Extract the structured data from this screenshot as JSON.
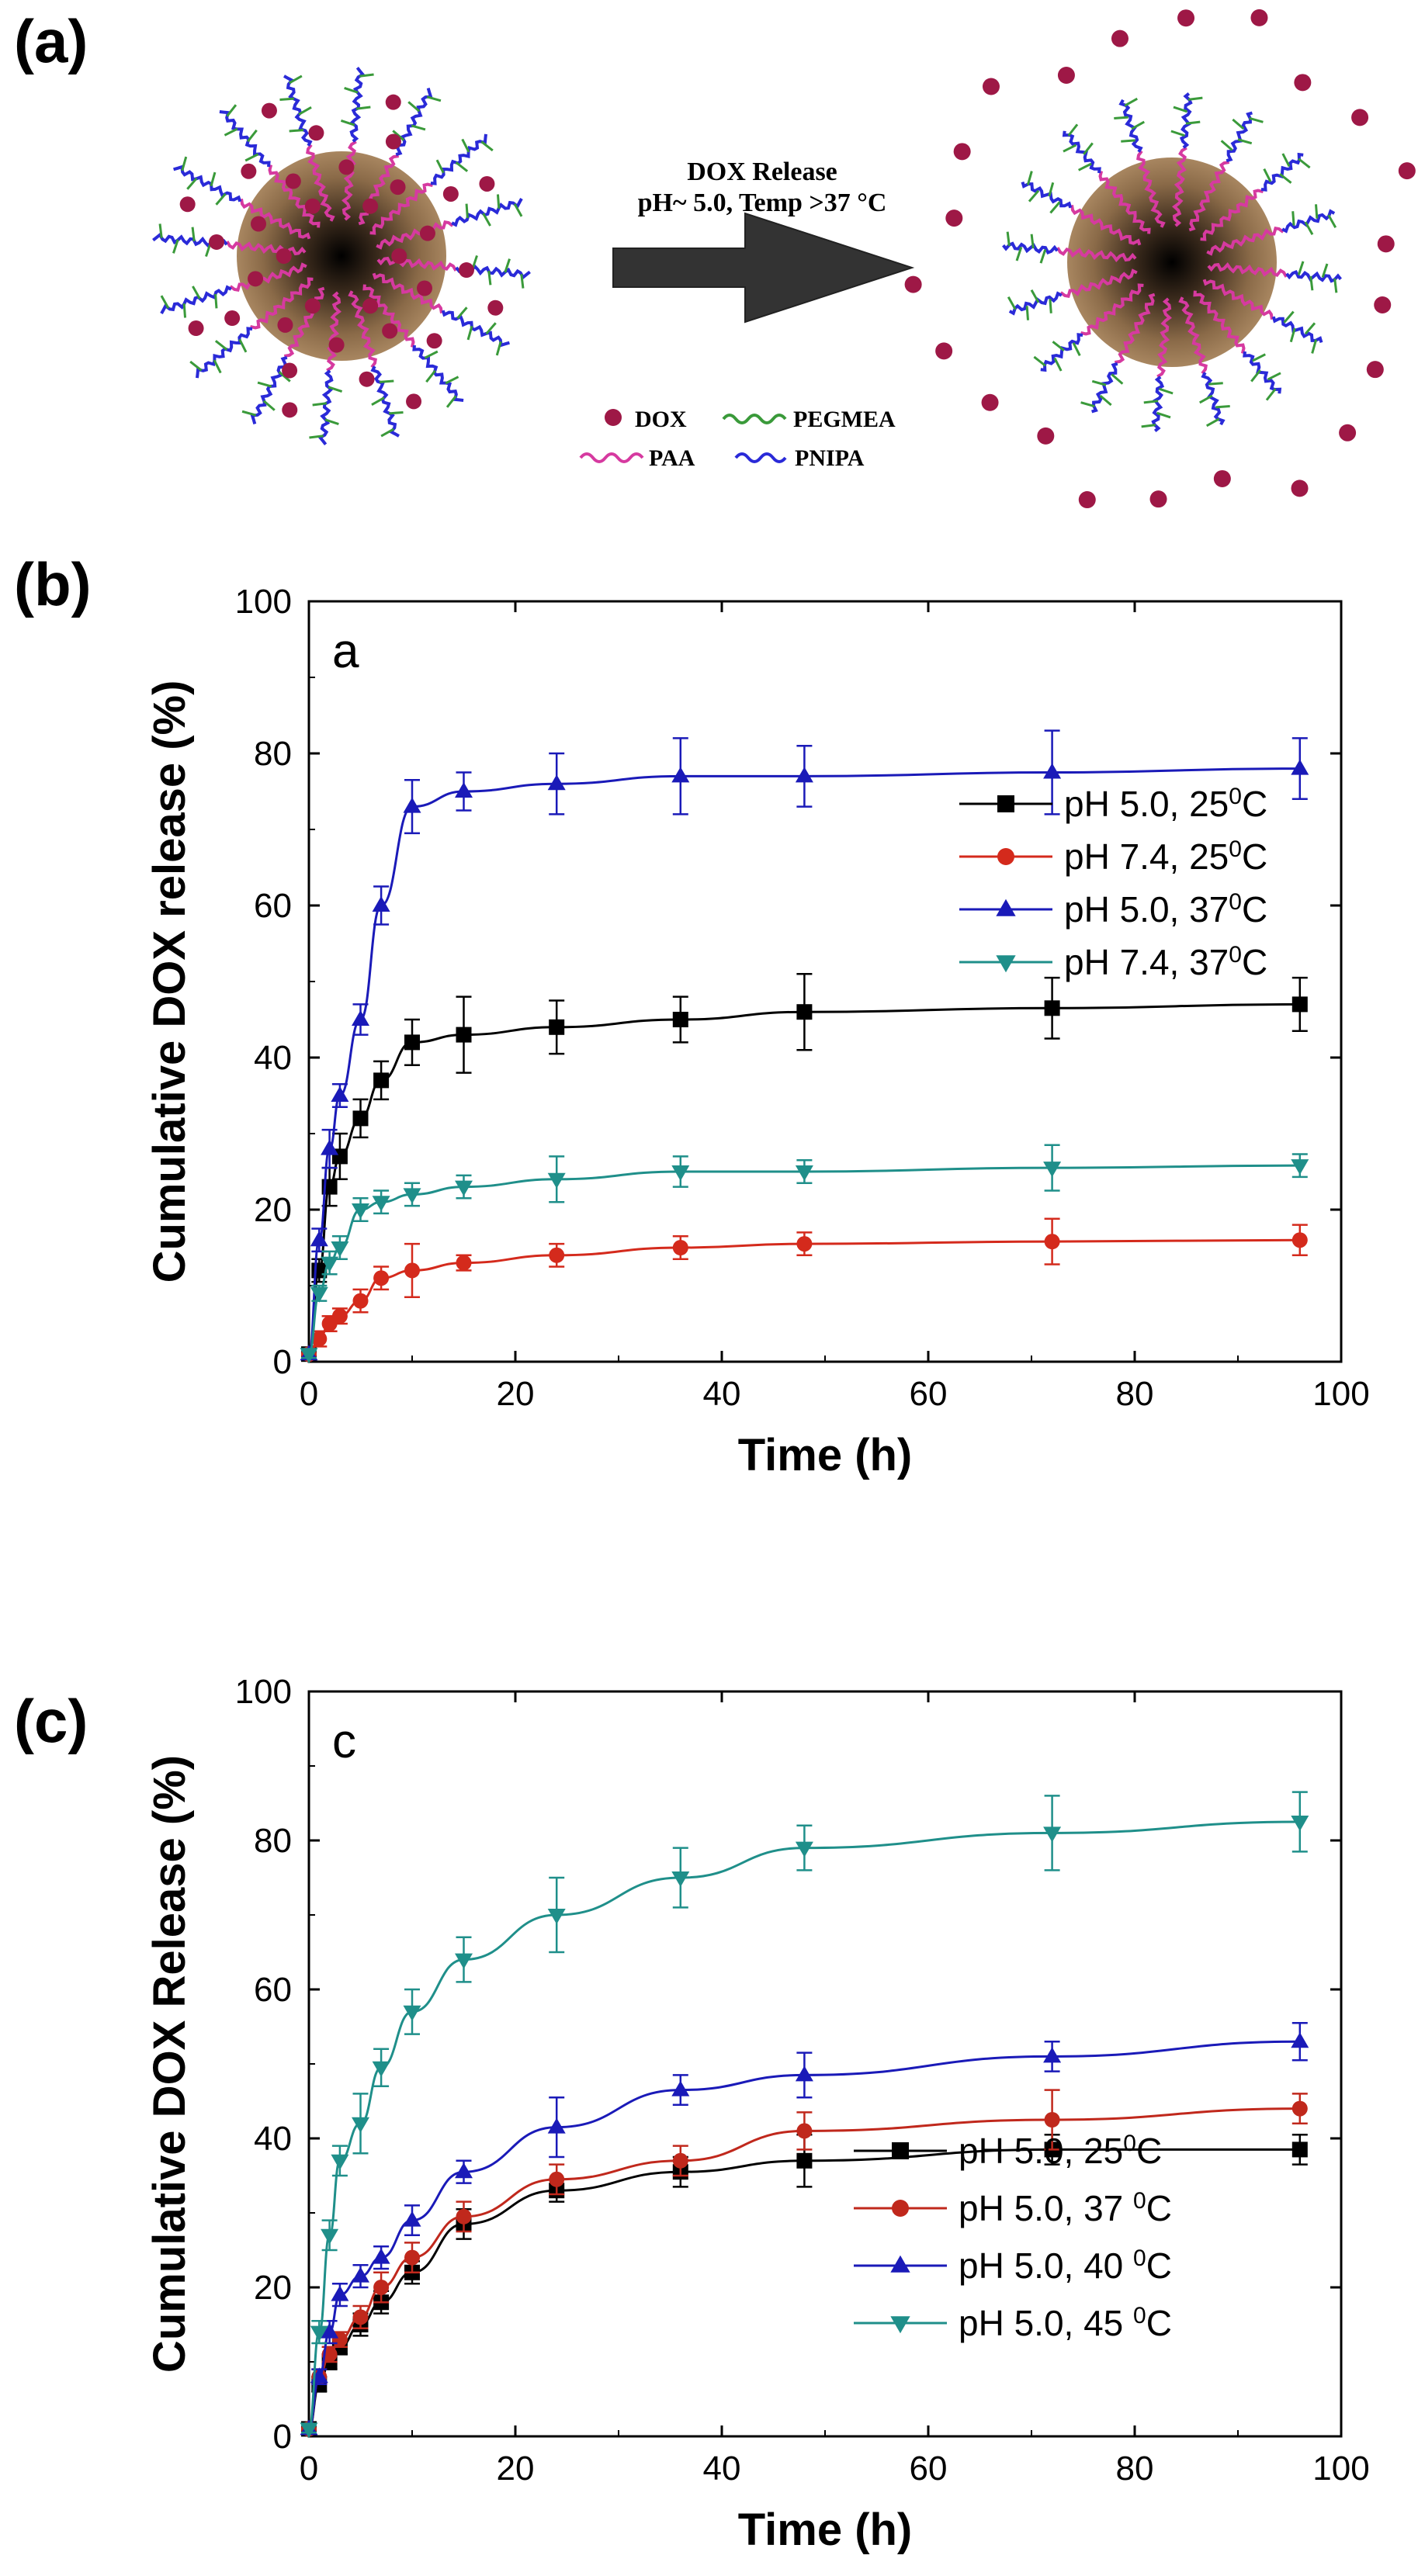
{
  "panel_a": {
    "label": "(a)",
    "arrow_line1": "DOX Release",
    "arrow_line2": "pH~ 5.0, Temp >37 °C",
    "legend": [
      {
        "name": "DOX",
        "color": "#9e1846",
        "kind": "dot"
      },
      {
        "name": "PEGMEA",
        "color": "#3a9a3a",
        "kind": "wave"
      },
      {
        "name": "PAA",
        "color": "#d63aa0",
        "kind": "wave"
      },
      {
        "name": "PNIPA",
        "color": "#2a2ad8",
        "kind": "wave"
      }
    ],
    "colors": {
      "core_outer": "#a07c55",
      "core_inner": "#000000",
      "arrow": "#333333",
      "dox": "#9e1846",
      "paa": "#d63aa0",
      "pnipa": "#2a2ad8",
      "pegmea": "#3a9a3a"
    }
  },
  "chart_data": [
    {
      "type": "line",
      "panel_label": "(b)",
      "inner_label": "a",
      "xlabel": "Time (h)",
      "ylabel": "Cumulative DOX release (%)",
      "xlim": [
        0,
        100
      ],
      "ylim": [
        0,
        100
      ],
      "xticks": [
        "0",
        "20",
        "40",
        "60",
        "80",
        "100"
      ],
      "yticks": [
        "0",
        "20",
        "40",
        "60",
        "80",
        "100"
      ],
      "legend_position": "right",
      "series": [
        {
          "name": "pH 5.0, 25",
          "unit_sup": "0",
          "unit": "C",
          "color": "#000000",
          "marker": "square",
          "x": [
            0,
            1,
            2,
            3,
            5,
            7,
            10,
            15,
            24,
            36,
            48,
            72,
            96
          ],
          "y": [
            1,
            12,
            23,
            27,
            32,
            37,
            42,
            43,
            44,
            45,
            46,
            46.5,
            47
          ],
          "err": [
            0.5,
            1.5,
            2.5,
            3,
            2.5,
            2.5,
            3,
            5,
            3.5,
            3,
            5,
            4,
            3.5
          ]
        },
        {
          "name": "pH 7.4, 25",
          "unit_sup": "0",
          "unit": "C",
          "color": "#d42a1c",
          "marker": "circle",
          "x": [
            0,
            1,
            2,
            3,
            5,
            7,
            10,
            15,
            24,
            36,
            48,
            72,
            96
          ],
          "y": [
            1,
            3,
            5,
            6,
            8,
            11,
            12,
            13,
            14,
            15,
            15.5,
            15.8,
            16
          ],
          "err": [
            0.5,
            1,
            1,
            1,
            1.5,
            1.5,
            3.5,
            1,
            1.5,
            1.5,
            1.5,
            3,
            2
          ]
        },
        {
          "name": "pH 5.0, 37",
          "unit_sup": "0",
          "unit": "C",
          "color": "#1a1ab8",
          "marker": "triangle-up",
          "x": [
            0,
            1,
            2,
            3,
            5,
            7,
            10,
            15,
            24,
            36,
            48,
            72,
            96
          ],
          "y": [
            1,
            16,
            28,
            35,
            45,
            60,
            73,
            75,
            76,
            77,
            77,
            77.5,
            78
          ],
          "err": [
            0.5,
            1.5,
            2.5,
            1.5,
            2,
            2.5,
            3.5,
            2.5,
            4,
            5,
            4,
            5.5,
            4
          ]
        },
        {
          "name": "pH 7.4, 37",
          "unit_sup": "0",
          "unit": "C",
          "color": "#1f8f8a",
          "marker": "triangle-down",
          "x": [
            0,
            1,
            2,
            3,
            5,
            7,
            10,
            15,
            24,
            36,
            48,
            72,
            96
          ],
          "y": [
            1,
            9,
            13,
            15,
            20,
            21,
            22,
            23,
            24,
            25,
            25,
            25.5,
            25.8
          ],
          "err": [
            0.5,
            1,
            1.5,
            1.5,
            1.5,
            1.5,
            1.5,
            1.5,
            3,
            2,
            1.5,
            3,
            1.5
          ]
        }
      ]
    },
    {
      "type": "line",
      "panel_label": "(c)",
      "inner_label": "c",
      "xlabel": "Time (h)",
      "ylabel": "Cumulative DOX Release (%)",
      "xlim": [
        0,
        100
      ],
      "ylim": [
        0,
        100
      ],
      "xticks": [
        "0",
        "20",
        "40",
        "60",
        "80",
        "100"
      ],
      "yticks": [
        "0",
        "20",
        "40",
        "60",
        "80",
        "100"
      ],
      "legend_position": "bottom-right",
      "series": [
        {
          "name": "pH 5.0, 25",
          "unit_sup": "0",
          "unit": "C",
          "color": "#000000",
          "marker": "square",
          "x": [
            0,
            1,
            2,
            3,
            5,
            7,
            10,
            15,
            24,
            36,
            48,
            72,
            96
          ],
          "y": [
            1,
            7,
            10,
            12,
            15,
            18,
            22,
            28.5,
            33,
            35.5,
            37,
            38.5,
            38.5
          ],
          "err": [
            0.5,
            1,
            1,
            1,
            1.5,
            1.5,
            1.5,
            2,
            1.5,
            2,
            3.5,
            2,
            2
          ]
        },
        {
          "name": "pH 5.0, 37 ",
          "unit_sup": "0",
          "unit": "C",
          "color": "#c0281c",
          "marker": "circle",
          "x": [
            0,
            1,
            2,
            3,
            5,
            7,
            10,
            15,
            24,
            36,
            48,
            72,
            96
          ],
          "y": [
            1,
            8,
            11,
            13,
            16,
            20,
            24,
            29.5,
            34.5,
            37,
            41,
            42.5,
            44
          ],
          "err": [
            0.5,
            1,
            1,
            1,
            1.5,
            2,
            2,
            2,
            2,
            2,
            2.5,
            4,
            2
          ]
        },
        {
          "name": "pH 5.0, 40 ",
          "unit_sup": "0",
          "unit": "C",
          "color": "#1a1ab8",
          "marker": "triangle-up",
          "x": [
            0,
            1,
            2,
            3,
            5,
            7,
            10,
            15,
            24,
            36,
            48,
            72,
            96
          ],
          "y": [
            1,
            8,
            14,
            19,
            21.5,
            24,
            29,
            35.5,
            41.5,
            46.5,
            48.5,
            51,
            53
          ],
          "err": [
            0.5,
            1,
            1.5,
            1.5,
            1.5,
            1.5,
            2,
            1.5,
            4,
            2,
            3,
            2,
            2.5
          ]
        },
        {
          "name": "pH 5.0, 45 ",
          "unit_sup": "0",
          "unit": "C",
          "color": "#1f8f8a",
          "marker": "triangle-down",
          "x": [
            0,
            1,
            2,
            3,
            5,
            7,
            10,
            15,
            24,
            36,
            48,
            72,
            96
          ],
          "y": [
            1,
            14,
            27,
            37,
            42,
            49.5,
            57,
            64,
            70,
            75,
            79,
            81,
            82.5
          ],
          "err": [
            0.5,
            1.5,
            2,
            2,
            4,
            2.5,
            3,
            3,
            5,
            4,
            3,
            5,
            4
          ]
        }
      ]
    }
  ]
}
